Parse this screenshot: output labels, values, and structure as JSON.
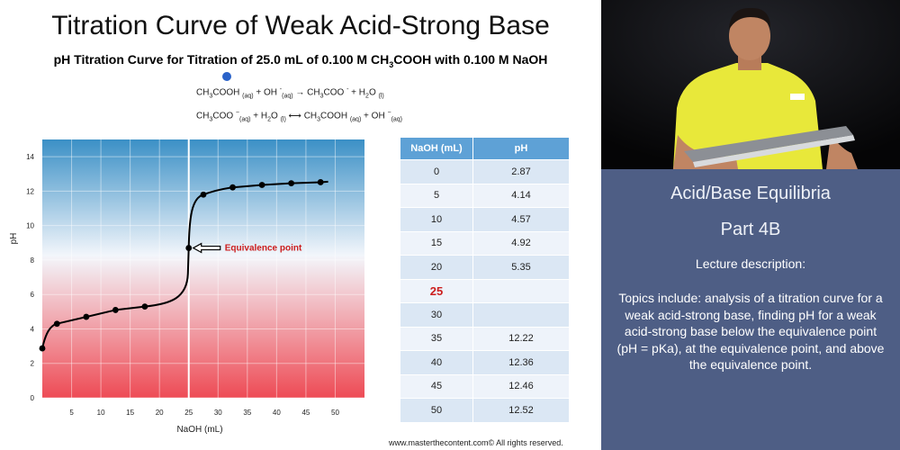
{
  "slide": {
    "title": "Titration Curve of Weak Acid-Strong Base",
    "subtitle": {
      "prefix": "pH Titration Curve for Titration of 25.0 mL of 0.100 M CH",
      "sub1": "3",
      "suffix": "COOH with 0.100 M NaOH"
    },
    "equation1": {
      "p1": "CH",
      "s1": "3",
      "p2": "COOH ",
      "s2": "(aq)",
      "p3": " + OH ",
      "sup1": "-",
      "s3": "(aq)",
      "arrow": " → ",
      "p4": "CH",
      "s4": "3",
      "p5": "COO ",
      "sup2": "-",
      "p6": " + H",
      "s5": "2",
      "p7": "O ",
      "s6": "(l)"
    },
    "equation2": {
      "p1": "CH",
      "s1": "3",
      "p2": "COO ",
      "sup1": "−",
      "s2": "(aq)",
      "p3": " + H",
      "s3": "2",
      "p4": "O ",
      "s4": "(l)",
      "arrow": " ⟷ ",
      "p5": "CH",
      "s5": "3",
      "p6": "COOH ",
      "s6": "(aq)",
      "p7": " + OH ",
      "sup2": "−",
      "s7": "(aq)"
    },
    "table": {
      "headers": [
        "NaOH (mL)",
        "pH"
      ],
      "rows": [
        [
          "0",
          "2.87"
        ],
        [
          "5",
          "4.14"
        ],
        [
          "10",
          "4.57"
        ],
        [
          "15",
          "4.92"
        ],
        [
          "20",
          "5.35"
        ],
        [
          "25",
          ""
        ],
        [
          "30",
          ""
        ],
        [
          "35",
          "12.22"
        ],
        [
          "40",
          "12.36"
        ],
        [
          "45",
          "12.46"
        ],
        [
          "50",
          "12.52"
        ]
      ]
    },
    "copyright": "www.masterthecontent.com© All rights reserved."
  },
  "panel": {
    "title": "Acid/Base Equilibria",
    "part": "Part 4B",
    "label": "Lecture description:",
    "description": "Topics include: analysis of a titration curve for a weak acid-strong base, finding pH for a weak acid-strong base below the equivalence point (pH = pKa), at the equivalence point, and above the equivalence point."
  },
  "colors": {
    "curve": "#000000",
    "annotation": "#cc1e1e",
    "table_header": "#5ea1d6",
    "panel_bg": "#4e5e85",
    "shirt": "#e8e83a"
  },
  "chart_data": {
    "type": "line",
    "xlabel": "NaOH (mL)",
    "ylabel": "pH",
    "xlim": [
      0,
      55
    ],
    "ylim": [
      0,
      15
    ],
    "xticks": [
      5,
      10,
      15,
      20,
      25,
      30,
      35,
      40,
      45,
      50
    ],
    "yticks": [
      0,
      2,
      4,
      6,
      8,
      10,
      12,
      14
    ],
    "grid": true,
    "points": [
      {
        "x": 0,
        "y": 2.87
      },
      {
        "x": 2.5,
        "y": 4.3
      },
      {
        "x": 7.5,
        "y": 4.7
      },
      {
        "x": 12.5,
        "y": 5.1
      },
      {
        "x": 17.5,
        "y": 5.3
      },
      {
        "x": 25,
        "y": 8.7
      },
      {
        "x": 27.5,
        "y": 11.8
      },
      {
        "x": 32.5,
        "y": 12.22
      },
      {
        "x": 37.5,
        "y": 12.36
      },
      {
        "x": 42.5,
        "y": 12.46
      },
      {
        "x": 47.5,
        "y": 12.52
      }
    ],
    "annotation": {
      "label": "Equivalence point",
      "x": 25,
      "y": 8.7
    }
  }
}
